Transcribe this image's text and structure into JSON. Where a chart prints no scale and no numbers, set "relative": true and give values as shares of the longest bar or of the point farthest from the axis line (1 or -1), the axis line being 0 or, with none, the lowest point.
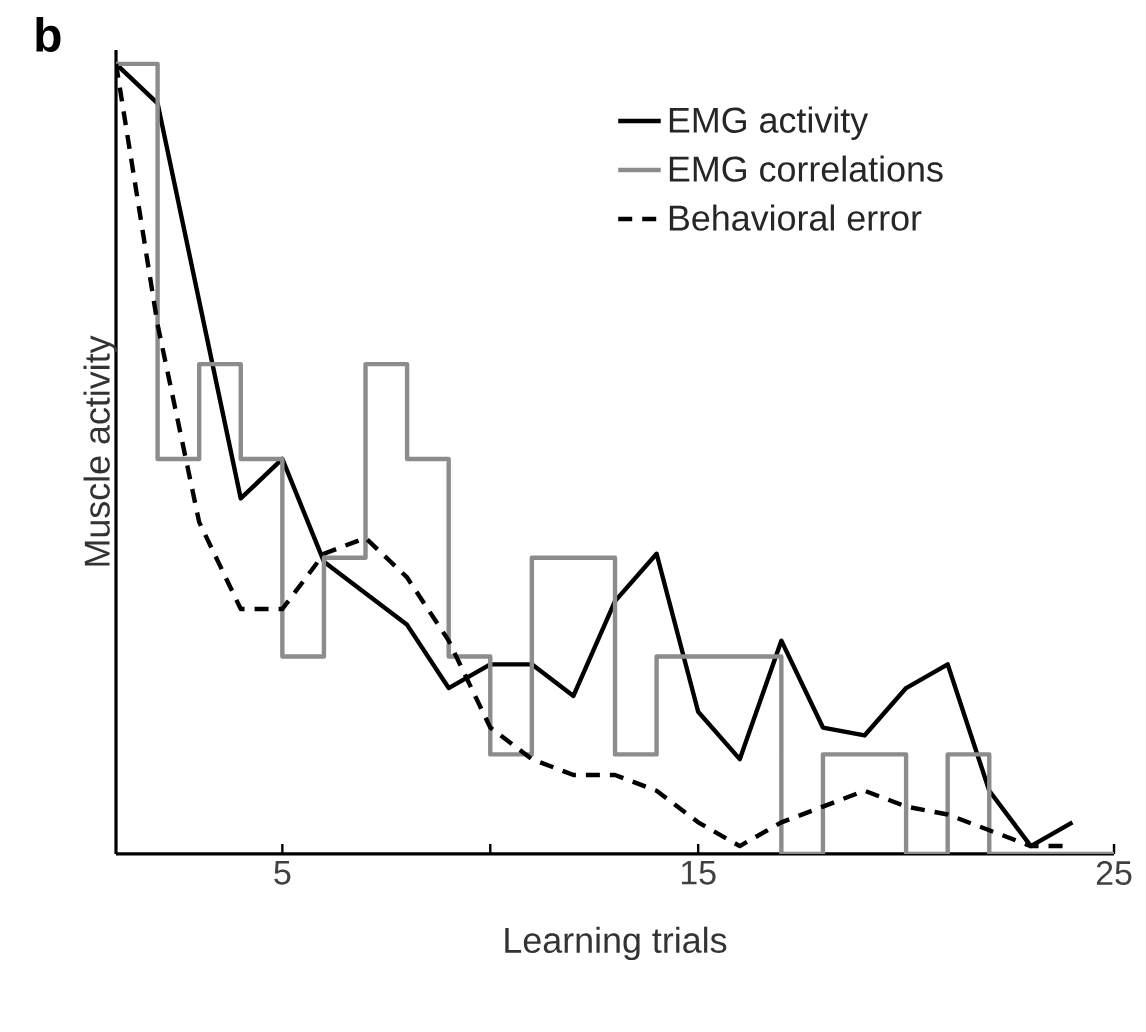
{
  "chart_data": {
    "type": "line",
    "title": "b",
    "xlabel": "Learning trials",
    "ylabel": "Muscle activity",
    "relative": true,
    "xlim": [
      1,
      25
    ],
    "xticks": [
      5,
      {
        "value": 10,
        "label": null
      },
      15,
      {
        "value": 20,
        "label": null
      },
      25
    ],
    "legend": "top right",
    "series": [
      {
        "name": "EMG activity",
        "color": "#000000",
        "line_style": "solid",
        "x": [
          1,
          2,
          3,
          4,
          5,
          6,
          7,
          8,
          9,
          10,
          11,
          12,
          13,
          14,
          15,
          16,
          17,
          18,
          19,
          20,
          21,
          22,
          23,
          24
        ],
        "values": [
          1.0,
          0.95,
          0.7,
          0.45,
          0.5,
          0.37,
          0.33,
          0.29,
          0.21,
          0.24,
          0.24,
          0.2,
          0.32,
          0.38,
          0.18,
          0.12,
          0.27,
          0.16,
          0.15,
          0.21,
          0.24,
          0.08,
          0.01,
          0.04
        ]
      },
      {
        "name": "EMG correlations",
        "type": "step",
        "color": "#8c8c8c",
        "line_style": "solid",
        "x": [
          1,
          2,
          3,
          4,
          5,
          6,
          7,
          8,
          9,
          10,
          11,
          12,
          13,
          14,
          15,
          16,
          17,
          18,
          19,
          20,
          21,
          22,
          23,
          24,
          25
        ],
        "values": [
          1.0,
          0.5,
          0.62,
          0.5,
          0.25,
          0.375,
          0.62,
          0.5,
          0.25,
          0.126,
          0.375,
          0.375,
          0.126,
          0.25,
          0.25,
          0.25,
          0,
          0.126,
          0.126,
          0,
          0.126,
          0,
          0,
          0,
          0
        ]
      },
      {
        "name": "Behavioral error",
        "color": "#000000",
        "line_style": "dashed",
        "x": [
          1,
          2,
          3,
          4,
          5,
          6,
          7,
          8,
          9,
          10,
          11,
          12,
          13,
          14,
          15,
          16,
          17,
          18,
          19,
          20,
          21,
          22,
          23,
          24
        ],
        "values": [
          1.0,
          0.67,
          0.42,
          0.31,
          0.31,
          0.38,
          0.4,
          0.35,
          0.27,
          0.16,
          0.12,
          0.1,
          0.1,
          0.08,
          0.04,
          0.01,
          0.04,
          0.06,
          0.08,
          0.06,
          0.05,
          0.03,
          0.01,
          0.01
        ]
      }
    ]
  }
}
